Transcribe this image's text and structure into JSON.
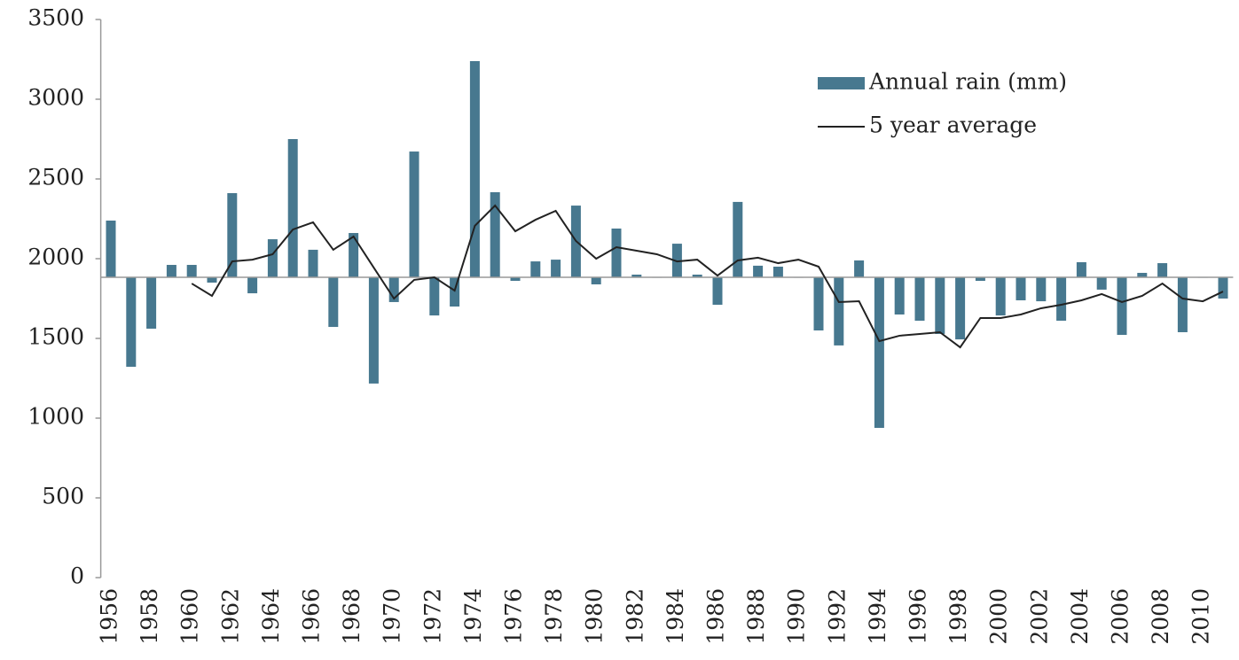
{
  "chart_data": {
    "type": "bar-line",
    "categories": [
      "1956",
      null,
      "1958",
      null,
      "1960",
      null,
      "1962",
      null,
      "1964",
      null,
      "1966",
      null,
      "1968",
      null,
      "1970",
      null,
      "1972",
      null,
      "1974",
      null,
      "1976",
      null,
      "1978",
      null,
      "1980",
      null,
      "1982",
      null,
      "1984",
      null,
      "1986",
      null,
      "1988",
      null,
      "1990",
      null,
      "1992",
      null,
      "1994",
      null,
      "1996",
      null,
      "1998",
      null,
      "2000",
      null,
      "2002",
      null,
      "2004",
      null,
      "2006",
      null,
      "2008",
      null,
      "2010",
      null
    ],
    "bar_base": 1883,
    "series": [
      {
        "name": "Annual rain (mm)",
        "kind": "bar",
        "color": "#47788f",
        "values": [
          2239,
          1322,
          1561,
          1961,
          1961,
          1850,
          2411,
          1783,
          2122,
          2750,
          2056,
          1572,
          2161,
          1217,
          1728,
          2672,
          1644,
          1700,
          3239,
          2417,
          1861,
          1983,
          1994,
          2333,
          1839,
          2189,
          1900,
          1883,
          2094,
          1900,
          1711,
          2356,
          1956,
          1950,
          1883,
          1550,
          1456,
          1989,
          939,
          1650,
          1611,
          1528,
          1494,
          1861,
          1644,
          1739,
          1733,
          1611,
          1978,
          1806,
          1522,
          1911,
          1972,
          1539,
          1883,
          1750
        ]
      },
      {
        "name": "5 year average",
        "kind": "line",
        "color": "#222222",
        "values": [
          null,
          null,
          null,
          null,
          1844,
          1767,
          1983,
          1994,
          2028,
          2183,
          2228,
          2056,
          2139,
          1944,
          1750,
          1867,
          1883,
          1800,
          2206,
          2333,
          2172,
          2244,
          2300,
          2111,
          2000,
          2072,
          2050,
          2028,
          1983,
          1994,
          1894,
          1989,
          2006,
          1972,
          1994,
          1950,
          1728,
          1733,
          1483,
          1517,
          1528,
          1539,
          1444,
          1628,
          1628,
          1650,
          1689,
          1711,
          1739,
          1778,
          1728,
          1767,
          1844,
          1750,
          1733,
          1794
        ]
      }
    ],
    "ylim": [
      0,
      3500
    ],
    "yticks": [
      0,
      500,
      1000,
      1500,
      2000,
      2500,
      3000,
      3500
    ],
    "grid": false,
    "legend": "upper right"
  }
}
